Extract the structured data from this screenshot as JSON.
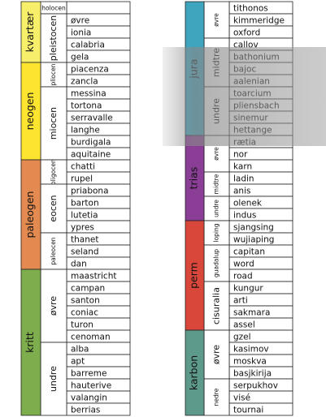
{
  "columns": [
    {
      "periods": [
        {
          "name": "kvartær",
          "color": "#f7ef6a",
          "epochs": [
            {
              "name": "holocen",
              "stages": []
            },
            {
              "name": "pleistocen",
              "stages": [
                "øvre",
                "ionia",
                "calabria",
                "gela"
              ]
            }
          ]
        },
        {
          "name": "neogen",
          "color": "#fde42f",
          "epochs": [
            {
              "name": "pliocen",
              "stages": [
                "piacenza",
                "zancla"
              ]
            },
            {
              "name": "miocen",
              "stages": [
                "messina",
                "tortona",
                "serravalle",
                "langhe",
                "burdigala",
                "aquitaine"
              ]
            }
          ]
        },
        {
          "name": "paleogen",
          "color": "#e38a50",
          "epochs": [
            {
              "name": "oligocen",
              "stages": [
                "chatti",
                "rupel"
              ]
            },
            {
              "name": "eocen",
              "stages": [
                "priabona",
                "barton",
                "lutetia",
                "ypres"
              ]
            },
            {
              "name": "paleocen",
              "stages": [
                "thanet",
                "seland",
                "dan"
              ]
            }
          ]
        },
        {
          "name": "kritt",
          "color": "#7dad4c",
          "epochs": [
            {
              "name": "øvre",
              "stages": [
                "maastricht",
                "campan",
                "santon",
                "coniac",
                "turon",
                "cenoman"
              ]
            },
            {
              "name": "undre",
              "stages": [
                "alba",
                "apt",
                "barreme",
                "hauterive",
                "valangin",
                "berrias"
              ]
            }
          ]
        }
      ]
    },
    {
      "periods": [
        {
          "name": "jura",
          "color": "#3fa5be",
          "epochs": [
            {
              "name": "øvre",
              "stages": [
                "tithonos",
                "kimmeridge",
                "oxford"
              ]
            },
            {
              "name": "midtre",
              "stages": [
                "callov",
                "bathonium",
                "bajoc",
                "aalenian"
              ]
            },
            {
              "name": "undre",
              "stages": [
                "toarcium",
                "pliensbach",
                "sinemur",
                "hettange"
              ]
            }
          ]
        },
        {
          "name": "trias",
          "color": "#8a3e96",
          "epochs": [
            {
              "name": "øvre",
              "stages": [
                "rætia",
                "nor",
                "karn"
              ]
            },
            {
              "name": "midtre",
              "stages": [
                "ladin",
                "anis"
              ]
            },
            {
              "name": "undre",
              "stages": [
                "olenek",
                "indus"
              ]
            }
          ]
        },
        {
          "name": "perm",
          "color": "#d8473a",
          "epochs": [
            {
              "name": "loping",
              "stages": [
                "sjangsing",
                "wujiaping"
              ]
            },
            {
              "name": "guadalup",
              "stages": [
                "capitan",
                "word",
                "road"
              ]
            },
            {
              "name": "cisuralia",
              "stages": [
                "kungur",
                "arti",
                "sakmara",
                "assel"
              ]
            }
          ]
        },
        {
          "name": "karbon",
          "color": "#5e9a8b",
          "epochs": [
            {
              "name": "øvre",
              "stages": [
                "gzel",
                "kasimov",
                "moskva",
                "basjkirija"
              ]
            },
            {
              "name": "nedre",
              "stages": [
                "serpukhov",
                "visé",
                "tournai"
              ]
            }
          ]
        }
      ]
    }
  ]
}
